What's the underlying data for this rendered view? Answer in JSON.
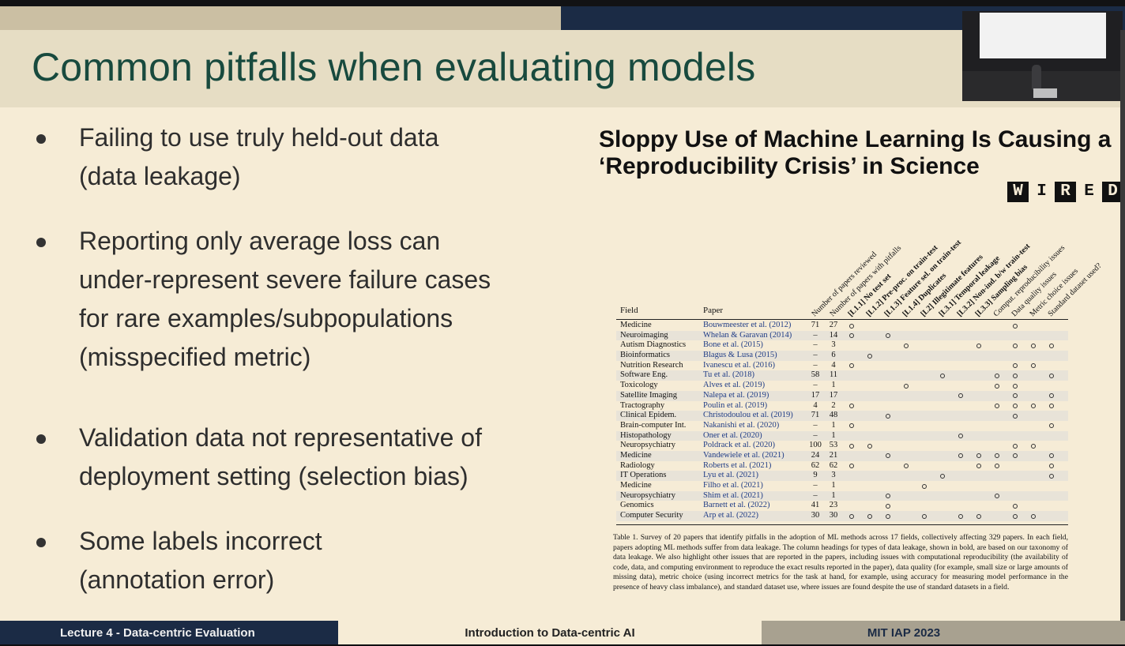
{
  "slide": {
    "title": "Common pitfalls when evaluating models",
    "bullets": [
      {
        "lines": [
          "Failing to use truly held-out data",
          "(data leakage)"
        ]
      },
      {
        "lines": [
          "Reporting only average loss can",
          "under-represent severe failure cases",
          "for rare examples/subpopulations",
          "(misspecified metric)"
        ]
      },
      {
        "lines": [
          "Validation data not representative of",
          "deployment setting  (selection bias)"
        ]
      },
      {
        "lines": [
          "Some labels incorrect",
          "(annotation error)"
        ]
      }
    ]
  },
  "article": {
    "headline_lines": [
      "Sloppy Use of Machine Learning Is Causing a",
      "‘Reproducibility Crisis’ in Science"
    ],
    "logo_letters": [
      "W",
      "I",
      "R",
      "E",
      "D"
    ]
  },
  "table": {
    "field_header": "Field",
    "paper_header": "Paper",
    "columns": [
      {
        "label": "Number of papers reviewed",
        "bold": false
      },
      {
        "label": "Number of papers with pitfalls",
        "bold": false
      },
      {
        "label": "[L1.1] No test set",
        "bold": true
      },
      {
        "label": "[L1.2] Pre-proc. on train-test",
        "bold": true
      },
      {
        "label": "[L1.3] Feature sel. on train-test",
        "bold": true
      },
      {
        "label": "[L1.4] Duplicates",
        "bold": true
      },
      {
        "label": "[L2] Illegitimate features",
        "bold": true
      },
      {
        "label": "[L3.1] Temporal leakage",
        "bold": true
      },
      {
        "label": "[L3.2] Non-ind. b/w train-test",
        "bold": true
      },
      {
        "label": "[L3.3] Sampling bias",
        "bold": true
      },
      {
        "label": "Comput. reproducibility issues",
        "bold": false
      },
      {
        "label": "Data quality issues",
        "bold": false
      },
      {
        "label": "Metric choice issues",
        "bold": false
      },
      {
        "label": "Standard dataset used?",
        "bold": false
      }
    ],
    "rows": [
      {
        "field": "Medicine",
        "paper": "Bouwmeester et al. (2012)",
        "reviewed": "71",
        "pitfalls": "27",
        "marks": [
          0,
          9
        ]
      },
      {
        "field": "Neuroimaging",
        "paper": "Whelan & Garavan (2014)",
        "reviewed": "–",
        "pitfalls": "14",
        "marks": [
          0,
          2
        ]
      },
      {
        "field": "Autism Diagnostics",
        "paper": "Bone et al. (2015)",
        "reviewed": "–",
        "pitfalls": "3",
        "marks": [
          3,
          7,
          9,
          10,
          11
        ]
      },
      {
        "field": "Bioinformatics",
        "paper": "Blagus & Lusa (2015)",
        "reviewed": "–",
        "pitfalls": "6",
        "marks": [
          1
        ]
      },
      {
        "field": "Nutrition Research",
        "paper": "Ivanescu et al. (2016)",
        "reviewed": "–",
        "pitfalls": "4",
        "marks": [
          0,
          9,
          10
        ]
      },
      {
        "field": "Software Eng.",
        "paper": "Tu et al. (2018)",
        "reviewed": "58",
        "pitfalls": "11",
        "marks": [
          5,
          8,
          9,
          11
        ]
      },
      {
        "field": "Toxicology",
        "paper": "Alves et al. (2019)",
        "reviewed": "–",
        "pitfalls": "1",
        "marks": [
          3,
          8,
          9
        ]
      },
      {
        "field": "Satellite Imaging",
        "paper": "Nalepa et al. (2019)",
        "reviewed": "17",
        "pitfalls": "17",
        "marks": [
          6,
          9,
          11
        ]
      },
      {
        "field": "Tractography",
        "paper": "Poulin et al. (2019)",
        "reviewed": "4",
        "pitfalls": "2",
        "marks": [
          0,
          8,
          9,
          10,
          11
        ]
      },
      {
        "field": "Clinical Epidem.",
        "paper": "Christodoulou et al. (2019)",
        "reviewed": "71",
        "pitfalls": "48",
        "marks": [
          2,
          9
        ]
      },
      {
        "field": "Brain-computer Int.",
        "paper": "Nakanishi et al. (2020)",
        "reviewed": "–",
        "pitfalls": "1",
        "marks": [
          0,
          11
        ]
      },
      {
        "field": "Histopathology",
        "paper": "Oner et al. (2020)",
        "reviewed": "–",
        "pitfalls": "1",
        "marks": [
          6
        ]
      },
      {
        "field": "Neuropsychiatry",
        "paper": "Poldrack et al. (2020)",
        "reviewed": "100",
        "pitfalls": "53",
        "marks": [
          0,
          1,
          9,
          10
        ]
      },
      {
        "field": "Medicine",
        "paper": "Vandewiele et al. (2021)",
        "reviewed": "24",
        "pitfalls": "21",
        "marks": [
          2,
          6,
          7,
          8,
          9,
          11
        ]
      },
      {
        "field": "Radiology",
        "paper": "Roberts et al. (2021)",
        "reviewed": "62",
        "pitfalls": "62",
        "marks": [
          0,
          3,
          7,
          8,
          11
        ]
      },
      {
        "field": "IT Operations",
        "paper": "Lyu et al. (2021)",
        "reviewed": "9",
        "pitfalls": "3",
        "marks": [
          5,
          11
        ]
      },
      {
        "field": "Medicine",
        "paper": "Filho et al. (2021)",
        "reviewed": "–",
        "pitfalls": "1",
        "marks": [
          4
        ]
      },
      {
        "field": "Neuropsychiatry",
        "paper": "Shim et al. (2021)",
        "reviewed": "–",
        "pitfalls": "1",
        "marks": [
          2,
          8
        ]
      },
      {
        "field": "Genomics",
        "paper": "Barnett et al. (2022)",
        "reviewed": "41",
        "pitfalls": "23",
        "marks": [
          2,
          9
        ]
      },
      {
        "field": "Computer Security",
        "paper": "Arp et al. (2022)",
        "reviewed": "30",
        "pitfalls": "30",
        "marks": [
          0,
          1,
          2,
          4,
          6,
          7,
          9,
          10
        ]
      }
    ],
    "caption": "Table 1. Survey of 20 papers that identify pitfalls in the adoption of ML methods across 17 fields, collectively affecting 329 papers. In each field, papers adopting ML methods suffer from data leakage. The column headings for types of data leakage, shown in bold, are based on our taxonomy of data leakage. We also highlight other issues that are reported in the papers, including issues with computational reproducibility (the availability of code, data, and computing environment to reproduce the exact results reported in the paper), data quality (for example, small size or large amounts of missing data), metric choice (using incorrect metrics for the task at hand, for example, using accuracy for measuring model performance in the presence of heavy class imbalance), and standard dataset use, where issues are found despite the use of standard datasets in a field."
  },
  "footer": {
    "left": "Lecture 4 - Data-centric Evaluation",
    "center": "Introduction to Data-centric AI",
    "right": "MIT IAP 2023"
  }
}
